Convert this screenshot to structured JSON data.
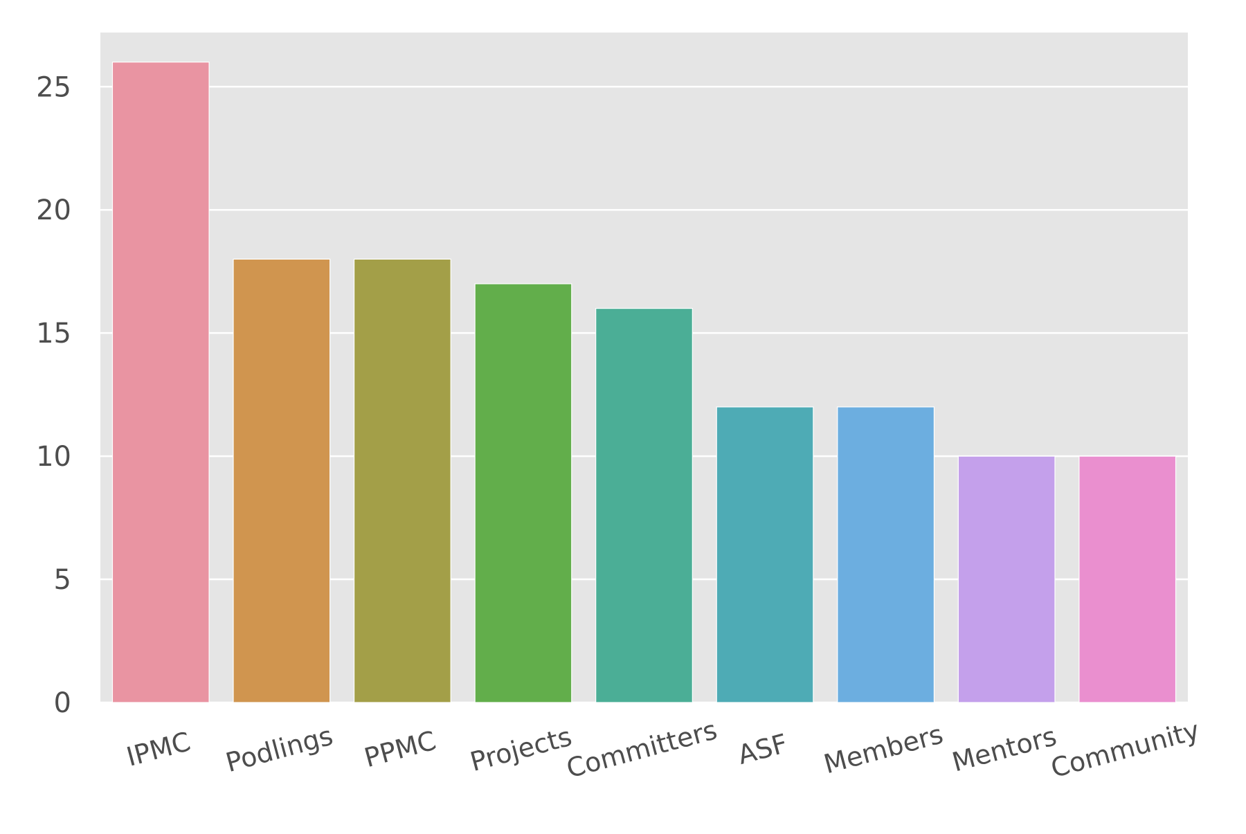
{
  "chart_data": {
    "type": "bar",
    "title": "",
    "xlabel": "",
    "ylabel": "",
    "categories": [
      "IPMC",
      "Podlings",
      "PPMC",
      "Projects",
      "Committers",
      "ASF",
      "Members",
      "Mentors",
      "Community"
    ],
    "values": [
      26,
      18,
      18,
      17,
      16,
      12,
      12,
      10,
      10
    ],
    "colors": [
      "#e994a2",
      "#d0954f",
      "#a39f48",
      "#62ae4b",
      "#4bae96",
      "#4eabb5",
      "#6caee0",
      "#c4a0eb",
      "#ea8fcf"
    ],
    "ylim": [
      0,
      27.2
    ],
    "yticks": [
      0,
      5,
      10,
      15,
      20,
      25
    ],
    "grid": true,
    "legend": "none",
    "background": "#e5e5e5",
    "grid_color": "#ffffff",
    "xtick_rotation_deg": -15
  }
}
